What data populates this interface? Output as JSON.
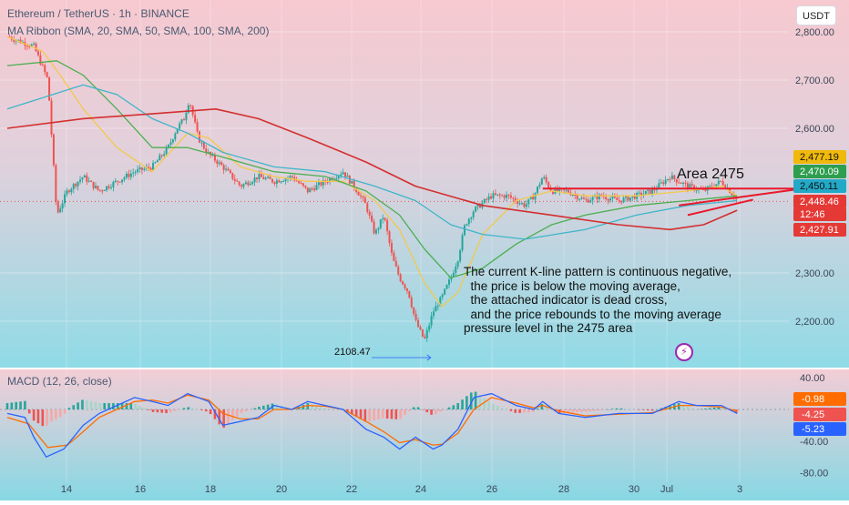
{
  "header": {
    "symbol_title": "Ethereum / TetherUS · 1h · BINANCE",
    "indicator_title": "MA Ribbon (SMA, 20, SMA, 50, SMA, 100, SMA, 200)",
    "currency_button": "USDT",
    "macd_title": "MACD (12, 26, close)"
  },
  "annotations": {
    "area_label": "Area 2475",
    "analysis_text": "The current K-line pattern is continuous negative,\n  the price is below the moving average,\n  the attached indicator is dead cross,\n  and the price rebounds to the moving average\npressure level in the 2475 area",
    "low_label": "2108.47",
    "bolt_icon": "lightning-icon"
  },
  "colors": {
    "bg_top": "#f7c9d0",
    "bg_bottom": "#8fdbe6",
    "up": "#26a69a",
    "down": "#ef5350",
    "ma20": "#f2c94c",
    "ma50": "#4caf50",
    "ma100": "#3fb5c9",
    "ma200": "#d32f2f",
    "macd_line": "#2962ff",
    "signal_line": "#ff6d00",
    "trendline": "#e8192c"
  },
  "chart_data": {
    "type": "candlestick",
    "price_axis": {
      "ticks": [
        2800,
        2700,
        2600,
        2300,
        2200
      ],
      "tick_labels": [
        "2,800.00",
        "2,700.00",
        "2,600.00",
        "2,300.00",
        "2,200.00"
      ],
      "range": [
        2090,
        2800
      ]
    },
    "time_axis": {
      "labels": [
        "14",
        "16",
        "18",
        "20",
        "22",
        "24",
        "26",
        "28",
        "30",
        "Jul",
        "3"
      ]
    },
    "price_badges": [
      {
        "label": "2,477.19",
        "value": 2477.19,
        "color": "#f0b90b",
        "text_color": "#111111"
      },
      {
        "label": "2,470.09",
        "value": 2470.09,
        "color": "#2e9e4f",
        "text_color": "#ffffff"
      },
      {
        "label": "2,450.11",
        "value": 2450.11,
        "color": "#22a9c7",
        "text_color": "#111111"
      },
      {
        "label": "2,448.46",
        "value": 2448.46,
        "color": "#e53935",
        "text_color": "#ffffff"
      },
      {
        "label": "12:46",
        "value": null,
        "color": "#e53935",
        "text_color": "#ffffff"
      },
      {
        "label": "2,427.91",
        "value": 2427.91,
        "color": "#e53935",
        "text_color": "#ffffff"
      }
    ],
    "current_price": 2448.46,
    "resistance_level": 2475,
    "price_path": [
      [
        0,
        2790
      ],
      [
        1.5,
        2770
      ],
      [
        2.3,
        2700
      ],
      [
        2.8,
        2420
      ],
      [
        3.4,
        2470
      ],
      [
        4.3,
        2500
      ],
      [
        5.2,
        2470
      ],
      [
        6.2,
        2490
      ],
      [
        7.2,
        2510
      ],
      [
        8.2,
        2520
      ],
      [
        9.1,
        2560
      ],
      [
        9.6,
        2600
      ],
      [
        10,
        2620
      ],
      [
        10.3,
        2660
      ],
      [
        10.8,
        2580
      ],
      [
        11.3,
        2550
      ],
      [
        12.2,
        2520
      ],
      [
        13.2,
        2480
      ],
      [
        14.2,
        2500
      ],
      [
        15.1,
        2490
      ],
      [
        16.1,
        2500
      ],
      [
        17,
        2470
      ],
      [
        18,
        2490
      ],
      [
        19,
        2510
      ],
      [
        19.8,
        2470
      ],
      [
        20.3,
        2440
      ],
      [
        20.8,
        2380
      ],
      [
        21.3,
        2420
      ],
      [
        21.8,
        2330
      ],
      [
        22.2,
        2290
      ],
      [
        22.7,
        2260
      ],
      [
        23.1,
        2200
      ],
      [
        23.6,
        2160
      ],
      [
        24.1,
        2220
      ],
      [
        24.6,
        2250
      ],
      [
        25.1,
        2290
      ],
      [
        25.5,
        2330
      ],
      [
        25.9,
        2400
      ],
      [
        26.4,
        2430
      ],
      [
        27.4,
        2460
      ],
      [
        28.3,
        2460
      ],
      [
        29.3,
        2440
      ],
      [
        29.8,
        2460
      ],
      [
        30.3,
        2500
      ],
      [
        30.8,
        2470
      ],
      [
        31.7,
        2470
      ],
      [
        32.7,
        2450
      ],
      [
        33.6,
        2460
      ],
      [
        34.6,
        2450
      ],
      [
        35.6,
        2460
      ],
      [
        36.5,
        2470
      ],
      [
        37.5,
        2500
      ],
      [
        38.5,
        2480
      ],
      [
        39.4,
        2470
      ],
      [
        40.4,
        2490
      ],
      [
        40.9,
        2470
      ],
      [
        41.3,
        2450
      ]
    ],
    "moving_averages": [
      {
        "name": "SMA 20",
        "points": [
          [
            0,
            2790
          ],
          [
            2,
            2760
          ],
          [
            3,
            2710
          ],
          [
            4.3,
            2640
          ],
          [
            6.2,
            2560
          ],
          [
            8.2,
            2510
          ],
          [
            10.2,
            2590
          ],
          [
            11.4,
            2580
          ],
          [
            13.2,
            2520
          ],
          [
            15.1,
            2500
          ],
          [
            17,
            2490
          ],
          [
            19,
            2490
          ],
          [
            20.8,
            2450
          ],
          [
            22.2,
            2390
          ],
          [
            23.6,
            2280
          ],
          [
            24.6,
            2230
          ],
          [
            25.5,
            2260
          ],
          [
            26.9,
            2380
          ],
          [
            28.8,
            2450
          ],
          [
            30.8,
            2470
          ],
          [
            32.7,
            2460
          ],
          [
            35.6,
            2460
          ],
          [
            38.5,
            2470
          ],
          [
            40.4,
            2480
          ],
          [
            41.3,
            2460
          ]
        ]
      },
      {
        "name": "SMA 50",
        "points": [
          [
            0,
            2730
          ],
          [
            2.8,
            2740
          ],
          [
            4.3,
            2710
          ],
          [
            6.2,
            2640
          ],
          [
            8.2,
            2560
          ],
          [
            10.2,
            2560
          ],
          [
            12.2,
            2540
          ],
          [
            15.1,
            2510
          ],
          [
            18,
            2500
          ],
          [
            20.3,
            2470
          ],
          [
            22.2,
            2420
          ],
          [
            23.6,
            2350
          ],
          [
            25.1,
            2290
          ],
          [
            26.9,
            2310
          ],
          [
            28.8,
            2360
          ],
          [
            30.8,
            2400
          ],
          [
            32.7,
            2420
          ],
          [
            35.6,
            2440
          ],
          [
            38.5,
            2450
          ],
          [
            41.3,
            2460
          ]
        ]
      },
      {
        "name": "SMA 100",
        "points": [
          [
            0,
            2640
          ],
          [
            4.3,
            2690
          ],
          [
            6.2,
            2670
          ],
          [
            8.2,
            2620
          ],
          [
            10.2,
            2590
          ],
          [
            12.2,
            2550
          ],
          [
            15.1,
            2520
          ],
          [
            18,
            2510
          ],
          [
            20.8,
            2480
          ],
          [
            23.1,
            2450
          ],
          [
            25.1,
            2400
          ],
          [
            26.9,
            2380
          ],
          [
            29.3,
            2370
          ],
          [
            32.7,
            2390
          ],
          [
            35.6,
            2420
          ],
          [
            38.5,
            2440
          ],
          [
            41.3,
            2450
          ]
        ]
      },
      {
        "name": "SMA 200",
        "points": [
          [
            0,
            2600
          ],
          [
            4.3,
            2620
          ],
          [
            8.2,
            2630
          ],
          [
            11.8,
            2640
          ],
          [
            14.2,
            2620
          ],
          [
            17,
            2580
          ],
          [
            20.3,
            2530
          ],
          [
            23.1,
            2480
          ],
          [
            26.9,
            2440
          ],
          [
            30.8,
            2420
          ],
          [
            34.6,
            2400
          ],
          [
            37.5,
            2390
          ],
          [
            39.4,
            2400
          ],
          [
            41.3,
            2430
          ]
        ]
      }
    ],
    "trendlines": [
      {
        "points": [
          [
            30.3,
            2475
          ],
          [
            45.2,
            2475
          ]
        ]
      },
      {
        "points": [
          [
            38,
            2440
          ],
          [
            45,
            2475
          ]
        ]
      },
      {
        "points": [
          [
            38.5,
            2420
          ],
          [
            42.2,
            2452
          ]
        ]
      }
    ],
    "macd_panel": {
      "title": "MACD (12, 26, close)",
      "ticks": [
        40,
        -40,
        -80
      ],
      "tick_labels": [
        "40.00",
        "-40.00",
        "-80.00"
      ],
      "range": [
        -85,
        45
      ],
      "badges": [
        {
          "label": "-0.98",
          "value": -0.98,
          "color": "#ff6d00"
        },
        {
          "label": "-4.25",
          "value": -4.25,
          "color": "#ef5350"
        },
        {
          "label": "-5.23",
          "value": -5.23,
          "color": "#2962ff"
        }
      ],
      "macd_line": [
        [
          0,
          -5
        ],
        [
          1,
          -10
        ],
        [
          1.5,
          -35
        ],
        [
          2.2,
          -60
        ],
        [
          3.2,
          -50
        ],
        [
          4.3,
          -20
        ],
        [
          5.2,
          -5
        ],
        [
          6.2,
          5
        ],
        [
          7.2,
          15
        ],
        [
          8.2,
          10
        ],
        [
          9.1,
          5
        ],
        [
          10.2,
          20
        ],
        [
          11.4,
          10
        ],
        [
          12.2,
          -20
        ],
        [
          13.2,
          -15
        ],
        [
          14.2,
          -10
        ],
        [
          15.1,
          5
        ],
        [
          16.1,
          0
        ],
        [
          17,
          10
        ],
        [
          18,
          5
        ],
        [
          19,
          0
        ],
        [
          20.3,
          -25
        ],
        [
          21.3,
          -35
        ],
        [
          22.2,
          -50
        ],
        [
          23.1,
          -35
        ],
        [
          24.1,
          -50
        ],
        [
          24.6,
          -45
        ],
        [
          25.5,
          -25
        ],
        [
          26.4,
          15
        ],
        [
          27.4,
          20
        ],
        [
          28.8,
          5
        ],
        [
          29.8,
          0
        ],
        [
          30.3,
          10
        ],
        [
          31.2,
          -5
        ],
        [
          32.7,
          -10
        ],
        [
          34.6,
          -5
        ],
        [
          36.5,
          -5
        ],
        [
          38,
          10
        ],
        [
          39,
          5
        ],
        [
          40.4,
          5
        ],
        [
          41.3,
          -5
        ]
      ],
      "signal_line": [
        [
          0,
          -10
        ],
        [
          1.2,
          -18
        ],
        [
          2.3,
          -48
        ],
        [
          3.4,
          -45
        ],
        [
          4.3,
          -28
        ],
        [
          5.2,
          -10
        ],
        [
          6.2,
          0
        ],
        [
          7.2,
          10
        ],
        [
          8.2,
          12
        ],
        [
          9.1,
          8
        ],
        [
          10.2,
          18
        ],
        [
          11.4,
          12
        ],
        [
          12.2,
          -5
        ],
        [
          13.2,
          -12
        ],
        [
          14.2,
          -12
        ],
        [
          15.1,
          0
        ],
        [
          16.1,
          0
        ],
        [
          17,
          5
        ],
        [
          18,
          4
        ],
        [
          19,
          0
        ],
        [
          20.3,
          -15
        ],
        [
          21.3,
          -28
        ],
        [
          22.2,
          -42
        ],
        [
          23.1,
          -38
        ],
        [
          24.1,
          -45
        ],
        [
          24.6,
          -44
        ],
        [
          25.5,
          -30
        ],
        [
          26.4,
          0
        ],
        [
          27.4,
          15
        ],
        [
          28.8,
          8
        ],
        [
          29.8,
          2
        ],
        [
          30.3,
          5
        ],
        [
          31.2,
          -2
        ],
        [
          32.7,
          -8
        ],
        [
          34.6,
          -6
        ],
        [
          36.5,
          -4
        ],
        [
          38,
          5
        ],
        [
          39,
          5
        ],
        [
          40.4,
          3
        ],
        [
          41.3,
          -2
        ]
      ]
    }
  }
}
